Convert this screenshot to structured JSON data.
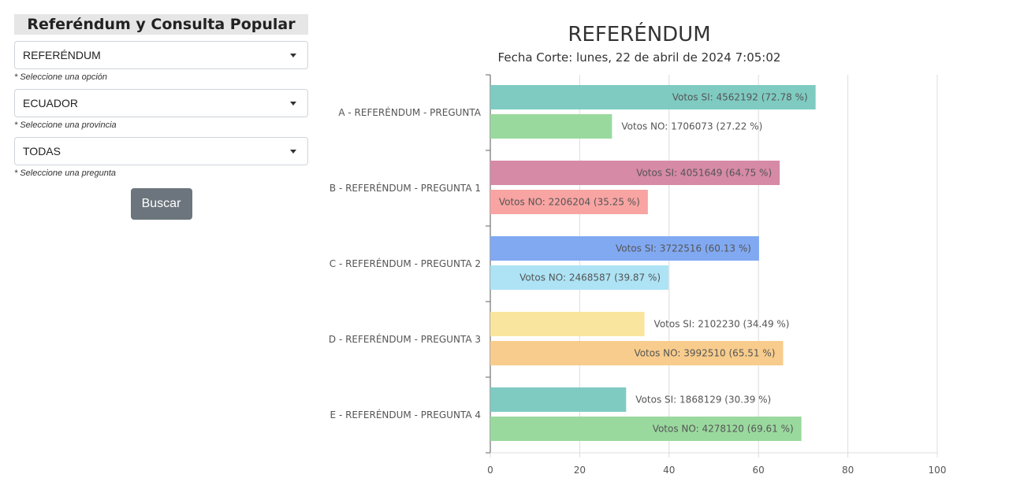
{
  "sidebar": {
    "title": "Referéndum y Consulta Popular",
    "option_select": {
      "value": "REFERÉNDUM",
      "hint": "* Seleccione una opción"
    },
    "province_select": {
      "value": "ECUADOR",
      "hint": "* Seleccione una provincia"
    },
    "question_select": {
      "value": "TODAS",
      "hint": "* Seleccione una pregunta"
    },
    "search_button": "Buscar"
  },
  "chart_data": {
    "type": "bar",
    "orientation": "horizontal",
    "title": "REFERÉNDUM",
    "subtitle": "Fecha Corte: lunes, 22 de abril de 2024 7:05:02",
    "xlim": [
      0,
      100
    ],
    "xticks": [
      0,
      20,
      40,
      60,
      80,
      100
    ],
    "grid": true,
    "categories": [
      "A - REFERÉNDUM - PREGUNTA",
      "B - REFERÉNDUM - PREGUNTA 1",
      "C - REFERÉNDUM - PREGUNTA 2",
      "D - REFERÉNDUM - PREGUNTA 3",
      "E - REFERÉNDUM - PREGUNTA 4"
    ],
    "bars": [
      [
        {
          "value": 72.78,
          "label": "Votos SI: 4562192 (72.78 %)",
          "color": "#7fcbc2"
        },
        {
          "value": 27.22,
          "label": "Votos NO: 1706073 (27.22 %)",
          "color": "#9ad99e"
        }
      ],
      [
        {
          "value": 64.75,
          "label": "Votos SI: 4051649 (64.75 %)",
          "color": "#d68aa6"
        },
        {
          "value": 35.25,
          "label": "Votos NO: 2206204 (35.25 %)",
          "color": "#f8a4a2"
        }
      ],
      [
        {
          "value": 60.13,
          "label": "Votos SI: 3722516 (60.13 %)",
          "color": "#81a9f2"
        },
        {
          "value": 39.87,
          "label": "Votos NO: 2468587 (39.87 %)",
          "color": "#ade3f5"
        }
      ],
      [
        {
          "value": 34.49,
          "label": "Votos SI: 2102230 (34.49 %)",
          "color": "#f9e59d"
        },
        {
          "value": 65.51,
          "label": "Votos NO: 3992510 (65.51 %)",
          "color": "#f8cc8c"
        }
      ],
      [
        {
          "value": 30.39,
          "label": "Votos SI: 1868129 (30.39 %)",
          "color": "#7fcbc2"
        },
        {
          "value": 69.61,
          "label": "Votos NO: 4278120 (69.61 %)",
          "color": "#9ad99e"
        }
      ]
    ]
  }
}
